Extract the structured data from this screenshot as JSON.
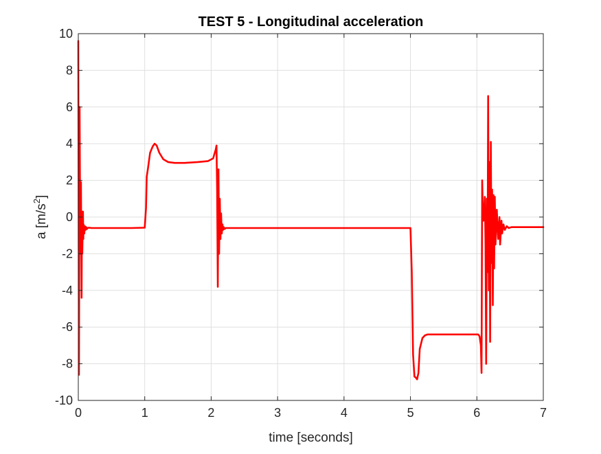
{
  "chart_data": {
    "type": "line",
    "title": "TEST 5 - Longitudinal acceleration",
    "xlabel": "time [seconds]",
    "ylabel": "a [m/s",
    "ylabel_superscript": "2",
    "ylabel_suffix": "]",
    "xlim": [
      0,
      7
    ],
    "ylim": [
      -10,
      10
    ],
    "x_ticks": [
      0,
      1,
      2,
      3,
      4,
      5,
      6,
      7
    ],
    "x_tick_labels": [
      "0",
      "1",
      "2",
      "3",
      "4",
      "5",
      "6",
      "7"
    ],
    "y_ticks": [
      -10,
      -8,
      -6,
      -4,
      -2,
      0,
      2,
      4,
      6,
      8,
      10
    ],
    "y_tick_labels": [
      "-10",
      "-8",
      "-6",
      "-4",
      "-2",
      "0",
      "2",
      "4",
      "6",
      "8",
      "10"
    ],
    "grid": true,
    "series": [
      {
        "color": "#ff0000",
        "x": [
          0.0,
          0.01,
          0.02,
          0.03,
          0.04,
          0.05,
          0.055,
          0.06,
          0.07,
          0.075,
          0.08,
          0.09,
          0.1,
          0.11,
          0.12,
          0.13,
          0.14,
          0.16,
          0.2,
          0.3,
          0.5,
          0.8,
          1.0,
          1.02,
          1.03,
          1.05,
          1.08,
          1.12,
          1.15,
          1.18,
          1.22,
          1.28,
          1.35,
          1.45,
          1.6,
          1.8,
          1.95,
          2.03,
          2.07,
          2.08,
          2.09,
          2.1,
          2.11,
          2.12,
          2.13,
          2.14,
          2.15,
          2.16,
          2.17,
          2.18,
          2.19,
          2.2,
          2.22,
          2.25,
          2.3,
          3.0,
          4.0,
          4.95,
          5.0,
          5.02,
          5.04,
          5.06,
          5.08,
          5.1,
          5.12,
          5.14,
          5.18,
          5.22,
          5.26,
          5.35,
          5.5,
          5.8,
          6.0,
          6.02,
          6.04,
          6.06,
          6.07,
          6.08,
          6.09,
          6.1,
          6.12,
          6.13,
          6.14,
          6.15,
          6.16,
          6.17,
          6.18,
          6.19,
          6.2,
          6.21,
          6.22,
          6.23,
          6.24,
          6.25,
          6.26,
          6.27,
          6.28,
          6.3,
          6.32,
          6.34,
          6.35,
          6.37,
          6.38,
          6.4,
          6.42,
          6.45,
          6.48,
          6.52,
          6.6,
          6.8,
          7.0
        ],
        "y": [
          9.6,
          -8.6,
          6.0,
          -2.0,
          1.9,
          -4.4,
          0.3,
          -2.0,
          0.3,
          -1.2,
          -0.4,
          -0.9,
          -0.5,
          -0.7,
          -0.55,
          -0.65,
          -0.6,
          -0.58,
          -0.6,
          -0.6,
          -0.6,
          -0.6,
          -0.58,
          0.5,
          2.2,
          2.7,
          3.5,
          3.85,
          4.0,
          3.9,
          3.5,
          3.15,
          3.0,
          2.95,
          2.95,
          3.0,
          3.05,
          3.2,
          3.7,
          3.9,
          1.5,
          -3.8,
          2.6,
          -2.0,
          1.0,
          -1.2,
          0.2,
          -0.9,
          -0.4,
          -0.7,
          -0.55,
          -0.65,
          -0.6,
          -0.6,
          -0.6,
          -0.6,
          -0.6,
          -0.6,
          -0.6,
          -3.0,
          -7.5,
          -8.7,
          -8.75,
          -8.85,
          -8.5,
          -7.2,
          -6.6,
          -6.45,
          -6.4,
          -6.4,
          -6.4,
          -6.4,
          -6.4,
          -6.4,
          -6.5,
          -7.0,
          -8.5,
          2.0,
          0.2,
          -0.2,
          1.1,
          -1.5,
          -8.0,
          1.0,
          -3.0,
          6.6,
          -4.0,
          3.0,
          -6.8,
          4.1,
          -2.5,
          1.5,
          -4.8,
          1.2,
          -2.8,
          1.1,
          -1.5,
          0.4,
          -1.2,
          0.0,
          -1.5,
          -0.2,
          -0.9,
          -0.4,
          -0.7,
          -0.5,
          -0.6,
          -0.55,
          -0.55,
          -0.55,
          -0.55
        ]
      }
    ]
  }
}
